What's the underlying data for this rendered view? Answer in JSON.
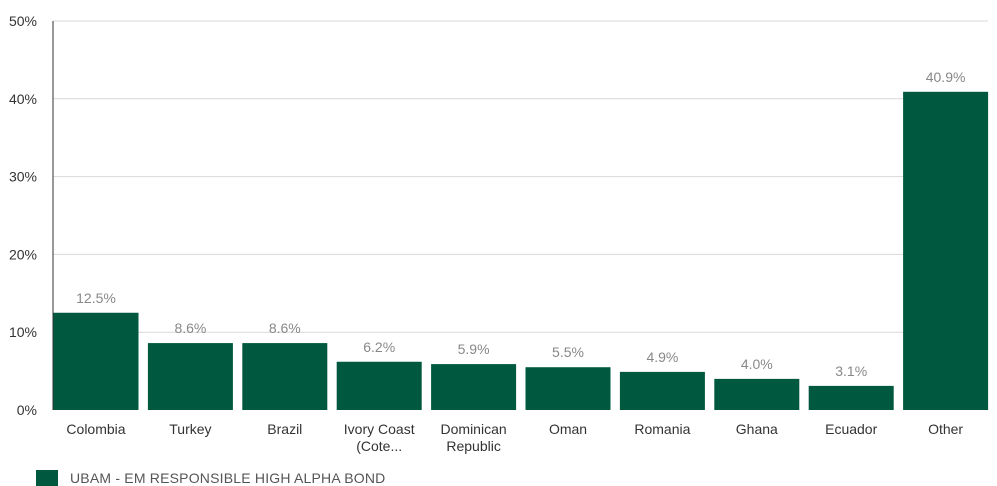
{
  "chart_data": {
    "type": "bar",
    "categories": [
      [
        "Colombia"
      ],
      [
        "Turkey"
      ],
      [
        "Brazil"
      ],
      [
        "Ivory Coast",
        "(Cote..."
      ],
      [
        "Dominican",
        "Republic"
      ],
      [
        "Oman"
      ],
      [
        "Romania"
      ],
      [
        "Ghana"
      ],
      [
        "Ecuador"
      ],
      [
        "Other"
      ]
    ],
    "series": [
      {
        "name": "UBAM - EM RESPONSIBLE HIGH ALPHA BOND",
        "values": [
          12.5,
          8.6,
          8.6,
          6.2,
          5.9,
          5.5,
          4.9,
          4.0,
          3.1,
          40.9
        ],
        "data_labels": [
          "12.5%",
          "8.6%",
          "8.6%",
          "6.2%",
          "5.9%",
          "5.5%",
          "4.9%",
          "4.0%",
          "3.1%",
          "40.9%"
        ]
      }
    ],
    "ylim": [
      0,
      50
    ],
    "yticks": [
      0,
      10,
      20,
      30,
      40,
      50
    ],
    "ytick_labels": [
      "0%",
      "10%",
      "20%",
      "30%",
      "40%",
      "50%"
    ],
    "grid": true,
    "legend_position": "bottom-left",
    "colors": {
      "bar": "#00583e",
      "grid": "#d9d9d9",
      "axis": "#333333",
      "data_label": "#888888",
      "tick_label": "#333333"
    }
  }
}
